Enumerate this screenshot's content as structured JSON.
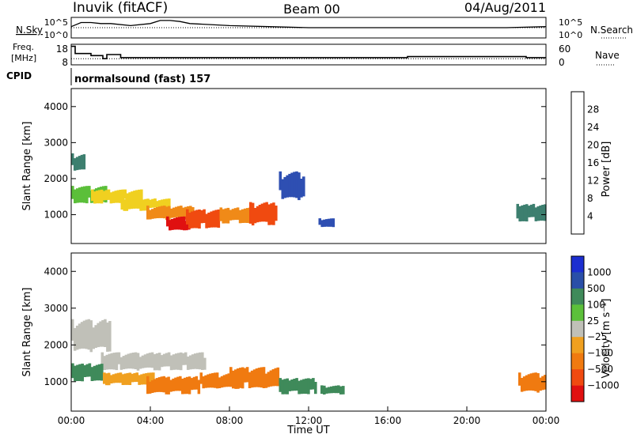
{
  "header": {
    "left_title": "Inuvik (fitACF)",
    "center_title": "Beam 00",
    "date": "04/Aug/2011"
  },
  "strip_labels": {
    "nsky": "N.Sky",
    "nsearch": "N.Search",
    "freq_line1": "Freq.",
    "freq_line2": "[MHz]",
    "nave": "Nave",
    "cpid": "CPID",
    "cpid_value": "normalsound (fast) 157"
  },
  "chart_data": [
    {
      "type": "line",
      "panel": "noise",
      "y_left_ticks": [
        "10^5",
        "10^0"
      ],
      "y_right_ticks": [
        "10^5",
        "10^0"
      ],
      "series": [
        {
          "name": "N.Sky",
          "style": "solid",
          "x": [
            0,
            0.5,
            1,
            1.5,
            2,
            3,
            4,
            4.5,
            5,
            5.5,
            6,
            8,
            10,
            12,
            14,
            16,
            18,
            20,
            22,
            24
          ],
          "y": [
            0.55,
            0.75,
            0.75,
            0.7,
            0.7,
            0.6,
            0.7,
            0.85,
            0.85,
            0.8,
            0.7,
            0.6,
            0.55,
            0.5,
            0.5,
            0.5,
            0.5,
            0.5,
            0.5,
            0.55
          ]
        },
        {
          "name": "N.Search",
          "style": "dotted",
          "x": [
            0,
            24
          ],
          "y": [
            0.5,
            0.5
          ]
        }
      ]
    },
    {
      "type": "line",
      "panel": "frequency",
      "y_left_ticks": [
        "18",
        "8"
      ],
      "y_right_ticks": [
        "60",
        "0"
      ],
      "series": [
        {
          "name": "Freq.",
          "style": "solid",
          "x": [
            0,
            0.2,
            0.2,
            1.0,
            1.0,
            1.6,
            1.6,
            1.8,
            1.8,
            2.5,
            2.5,
            17.0,
            17.0,
            23.0,
            23.0,
            24.0
          ],
          "y": [
            17,
            17,
            13.5,
            13.5,
            12.5,
            12.5,
            11,
            11,
            13,
            13,
            11.5,
            11.5,
            12,
            12,
            11.5,
            11.5
          ]
        },
        {
          "name": "Nave",
          "style": "dotted",
          "x": [
            0,
            24
          ],
          "y": [
            11,
            11
          ]
        }
      ]
    },
    {
      "type": "heatmap",
      "panel": "power",
      "ylabel": "Slant Range [km]",
      "y_ticks": [
        "1000",
        "2000",
        "3000",
        "4000"
      ],
      "ylim": [
        200,
        4500
      ],
      "colorbar_label": "Power [dB]",
      "colorbar_ticks": [
        "4",
        "8",
        "12",
        "16",
        "20",
        "24",
        "28"
      ],
      "colorbar_colors": [
        "#1b1bff",
        "#2e4fb2",
        "#3d7f6f",
        "#5bbf3a",
        "#f0d020",
        "#f08a18",
        "#f04a10",
        "#e01010"
      ],
      "regions": [
        {
          "t0": 0.0,
          "t1": 0.7,
          "r0": 2200,
          "r1": 2700,
          "level": 2
        },
        {
          "t0": 0.0,
          "t1": 1.8,
          "r0": 1300,
          "r1": 1800,
          "level": 3
        },
        {
          "t0": 1.0,
          "t1": 3.6,
          "r0": 1300,
          "r1": 1700,
          "level": 4
        },
        {
          "t0": 2.5,
          "t1": 5.0,
          "r0": 1100,
          "r1": 1450,
          "level": 4
        },
        {
          "t0": 3.8,
          "t1": 6.2,
          "r0": 850,
          "r1": 1250,
          "level": 5
        },
        {
          "t0": 4.8,
          "t1": 6.0,
          "r0": 550,
          "r1": 950,
          "level": 7
        },
        {
          "t0": 5.8,
          "t1": 7.5,
          "r0": 600,
          "r1": 1150,
          "level": 6
        },
        {
          "t0": 7.5,
          "t1": 9.2,
          "r0": 750,
          "r1": 1200,
          "level": 5
        },
        {
          "t0": 9.0,
          "t1": 10.4,
          "r0": 700,
          "r1": 1350,
          "level": 6
        },
        {
          "t0": 10.5,
          "t1": 11.8,
          "r0": 1400,
          "r1": 2200,
          "level": 1
        },
        {
          "t0": 12.5,
          "t1": 13.3,
          "r0": 650,
          "r1": 900,
          "level": 1
        },
        {
          "t0": 22.5,
          "t1": 24.0,
          "r0": 800,
          "r1": 1300,
          "level": 2
        }
      ]
    },
    {
      "type": "heatmap",
      "panel": "velocity",
      "xlabel": "Time UT",
      "ylabel": "Slant Range [km]",
      "x_ticks": [
        "00:00",
        "04:00",
        "08:00",
        "12:00",
        "16:00",
        "20:00",
        "00:00"
      ],
      "y_ticks": [
        "1000",
        "2000",
        "3000",
        "4000"
      ],
      "ylim": [
        200,
        4500
      ],
      "colorbar_label": "Velocity [m s⁻¹]",
      "colorbar_ticks": [
        "1000",
        "500",
        "100",
        "25",
        "−25",
        "−100",
        "−500",
        "−1000"
      ],
      "colorbar_colors": [
        "#1c2ed0",
        "#2a4fa8",
        "#3f8a5a",
        "#5cc03a",
        "#c0c0b8",
        "#f0a020",
        "#f07a10",
        "#f04a10",
        "#e01010"
      ],
      "regions": [
        {
          "t0": 0.0,
          "t1": 2.0,
          "r0": 1800,
          "r1": 2700,
          "level": 4
        },
        {
          "t0": 1.5,
          "t1": 6.8,
          "r0": 1300,
          "r1": 1800,
          "level": 4
        },
        {
          "t0": 0.0,
          "t1": 1.6,
          "r0": 1000,
          "r1": 1500,
          "level": 2
        },
        {
          "t0": 1.6,
          "t1": 4.2,
          "r0": 900,
          "r1": 1250,
          "level": 5
        },
        {
          "t0": 3.8,
          "t1": 6.5,
          "r0": 650,
          "r1": 1150,
          "level": 6
        },
        {
          "t0": 6.5,
          "t1": 8.6,
          "r0": 800,
          "r1": 1250,
          "level": 6
        },
        {
          "t0": 8.0,
          "t1": 10.5,
          "r0": 800,
          "r1": 1400,
          "level": 6
        },
        {
          "t0": 10.5,
          "t1": 12.4,
          "r0": 650,
          "r1": 1100,
          "level": 2
        },
        {
          "t0": 12.6,
          "t1": 13.8,
          "r0": 650,
          "r1": 900,
          "level": 2
        },
        {
          "t0": 22.6,
          "t1": 24.0,
          "r0": 700,
          "r1": 1250,
          "level": 6
        }
      ]
    }
  ]
}
